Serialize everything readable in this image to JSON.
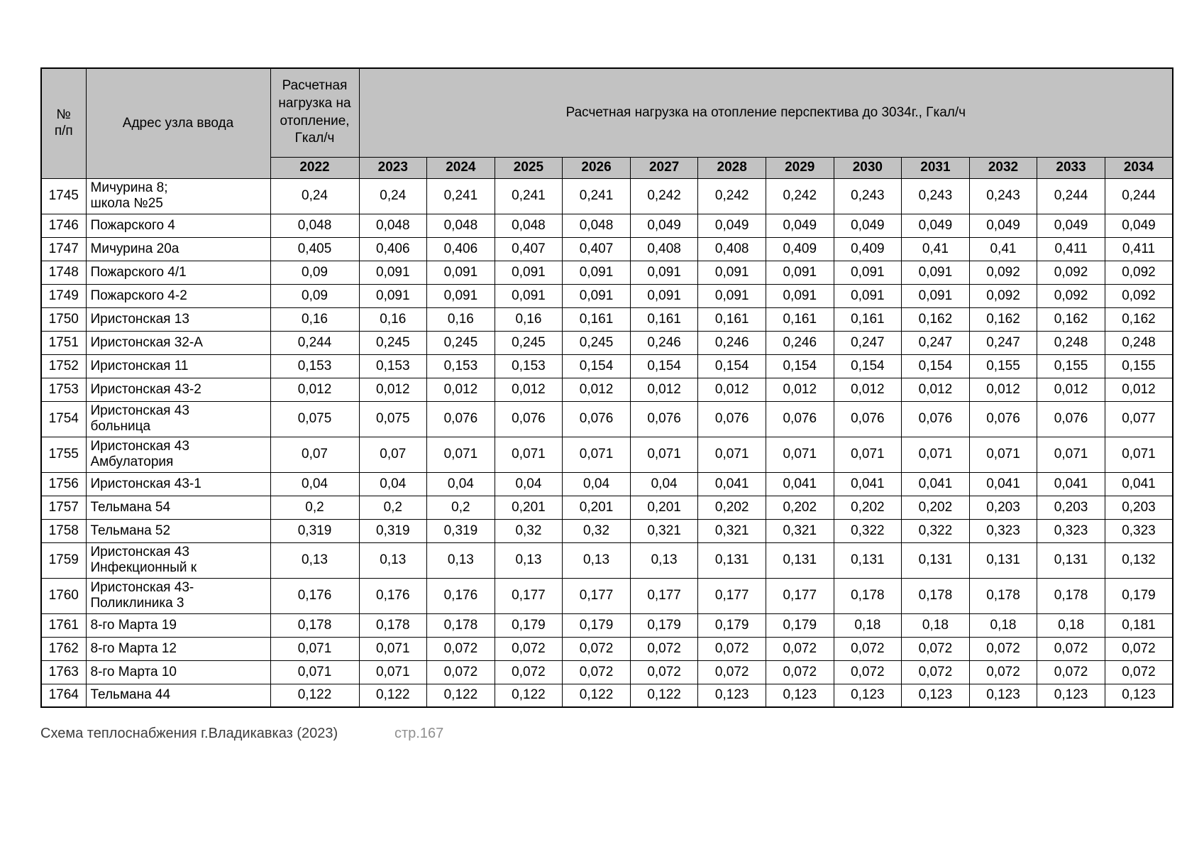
{
  "colors": {
    "header_bg": "#c2c2c2",
    "border": "#000000",
    "footer_text": "#3d3d3d",
    "page_number_text": "#8f8f8f"
  },
  "footer": {
    "left_text": "Схема теплоснабжения г.Владикавказ (2023)",
    "page_number": "стр.167"
  },
  "table": {
    "header": {
      "col_num": "№\nп/п",
      "col_address": "Адрес узла ввода",
      "col_load_2022": "Расчетная нагрузка на отопление, Гкал/ч",
      "col_forecast": "Расчетная нагрузка на отопление перспектива до 3034г., Гкал/ч",
      "base_year": "2022",
      "years": [
        "2023",
        "2024",
        "2025",
        "2026",
        "2027",
        "2028",
        "2029",
        "2030",
        "2031",
        "2032",
        "2033",
        "2034"
      ]
    },
    "rows": [
      {
        "num": "1745",
        "address": "Мичурина 8;\nшкола №25",
        "values": [
          "0,24",
          "0,24",
          "0,241",
          "0,241",
          "0,241",
          "0,242",
          "0,242",
          "0,242",
          "0,243",
          "0,243",
          "0,243",
          "0,244",
          "0,244"
        ]
      },
      {
        "num": "1746",
        "address": "Пожарского 4",
        "values": [
          "0,048",
          "0,048",
          "0,048",
          "0,048",
          "0,048",
          "0,049",
          "0,049",
          "0,049",
          "0,049",
          "0,049",
          "0,049",
          "0,049",
          "0,049"
        ]
      },
      {
        "num": "1747",
        "address": "Мичурина 20а",
        "values": [
          "0,405",
          "0,406",
          "0,406",
          "0,407",
          "0,407",
          "0,408",
          "0,408",
          "0,409",
          "0,409",
          "0,41",
          "0,41",
          "0,411",
          "0,411"
        ]
      },
      {
        "num": "1748",
        "address": "Пожарского 4/1",
        "values": [
          "0,09",
          "0,091",
          "0,091",
          "0,091",
          "0,091",
          "0,091",
          "0,091",
          "0,091",
          "0,091",
          "0,091",
          "0,092",
          "0,092",
          "0,092"
        ]
      },
      {
        "num": "1749",
        "address": "Пожарского 4-2",
        "values": [
          "0,09",
          "0,091",
          "0,091",
          "0,091",
          "0,091",
          "0,091",
          "0,091",
          "0,091",
          "0,091",
          "0,091",
          "0,092",
          "0,092",
          "0,092"
        ]
      },
      {
        "num": "1750",
        "address": "Иристонская 13",
        "values": [
          "0,16",
          "0,16",
          "0,16",
          "0,16",
          "0,161",
          "0,161",
          "0,161",
          "0,161",
          "0,161",
          "0,162",
          "0,162",
          "0,162",
          "0,162"
        ]
      },
      {
        "num": "1751",
        "address": "Иристонская 32-А",
        "values": [
          "0,244",
          "0,245",
          "0,245",
          "0,245",
          "0,245",
          "0,246",
          "0,246",
          "0,246",
          "0,247",
          "0,247",
          "0,247",
          "0,248",
          "0,248"
        ]
      },
      {
        "num": "1752",
        "address": "Иристонская 11",
        "values": [
          "0,153",
          "0,153",
          "0,153",
          "0,153",
          "0,154",
          "0,154",
          "0,154",
          "0,154",
          "0,154",
          "0,154",
          "0,155",
          "0,155",
          "0,155"
        ]
      },
      {
        "num": "1753",
        "address": "Иристонская 43-2",
        "values": [
          "0,012",
          "0,012",
          "0,012",
          "0,012",
          "0,012",
          "0,012",
          "0,012",
          "0,012",
          "0,012",
          "0,012",
          "0,012",
          "0,012",
          "0,012"
        ]
      },
      {
        "num": "1754",
        "address": "Иристонская 43\nбольница",
        "values": [
          "0,075",
          "0,075",
          "0,076",
          "0,076",
          "0,076",
          "0,076",
          "0,076",
          "0,076",
          "0,076",
          "0,076",
          "0,076",
          "0,076",
          "0,077"
        ]
      },
      {
        "num": "1755",
        "address": "Иристонская 43\nАмбулатория",
        "values": [
          "0,07",
          "0,07",
          "0,071",
          "0,071",
          "0,071",
          "0,071",
          "0,071",
          "0,071",
          "0,071",
          "0,071",
          "0,071",
          "0,071",
          "0,071"
        ]
      },
      {
        "num": "1756",
        "address": "Иристонская 43-1",
        "values": [
          "0,04",
          "0,04",
          "0,04",
          "0,04",
          "0,04",
          "0,04",
          "0,041",
          "0,041",
          "0,041",
          "0,041",
          "0,041",
          "0,041",
          "0,041"
        ]
      },
      {
        "num": "1757",
        "address": "Тельмана 54",
        "values": [
          "0,2",
          "0,2",
          "0,2",
          "0,201",
          "0,201",
          "0,201",
          "0,202",
          "0,202",
          "0,202",
          "0,202",
          "0,203",
          "0,203",
          "0,203"
        ]
      },
      {
        "num": "1758",
        "address": "Тельмана 52",
        "values": [
          "0,319",
          "0,319",
          "0,319",
          "0,32",
          "0,32",
          "0,321",
          "0,321",
          "0,321",
          "0,322",
          "0,322",
          "0,323",
          "0,323",
          "0,323"
        ]
      },
      {
        "num": "1759",
        "address": "Иристонская 43\nИнфекционный к",
        "values": [
          "0,13",
          "0,13",
          "0,13",
          "0,13",
          "0,13",
          "0,13",
          "0,131",
          "0,131",
          "0,131",
          "0,131",
          "0,131",
          "0,131",
          "0,132"
        ]
      },
      {
        "num": "1760",
        "address": "Иристонская 43-\nПоликлиника 3",
        "values": [
          "0,176",
          "0,176",
          "0,176",
          "0,177",
          "0,177",
          "0,177",
          "0,177",
          "0,177",
          "0,178",
          "0,178",
          "0,178",
          "0,178",
          "0,179"
        ]
      },
      {
        "num": "1761",
        "address": "8-го Марта 19",
        "values": [
          "0,178",
          "0,178",
          "0,178",
          "0,179",
          "0,179",
          "0,179",
          "0,179",
          "0,179",
          "0,18",
          "0,18",
          "0,18",
          "0,18",
          "0,181"
        ]
      },
      {
        "num": "1762",
        "address": "8-го Марта 12",
        "values": [
          "0,071",
          "0,071",
          "0,072",
          "0,072",
          "0,072",
          "0,072",
          "0,072",
          "0,072",
          "0,072",
          "0,072",
          "0,072",
          "0,072",
          "0,072"
        ]
      },
      {
        "num": "1763",
        "address": "8-го Марта 10",
        "values": [
          "0,071",
          "0,071",
          "0,072",
          "0,072",
          "0,072",
          "0,072",
          "0,072",
          "0,072",
          "0,072",
          "0,072",
          "0,072",
          "0,072",
          "0,072"
        ]
      },
      {
        "num": "1764",
        "address": "Тельмана 44",
        "values": [
          "0,122",
          "0,122",
          "0,122",
          "0,122",
          "0,122",
          "0,122",
          "0,123",
          "0,123",
          "0,123",
          "0,123",
          "0,123",
          "0,123",
          "0,123"
        ]
      }
    ]
  }
}
